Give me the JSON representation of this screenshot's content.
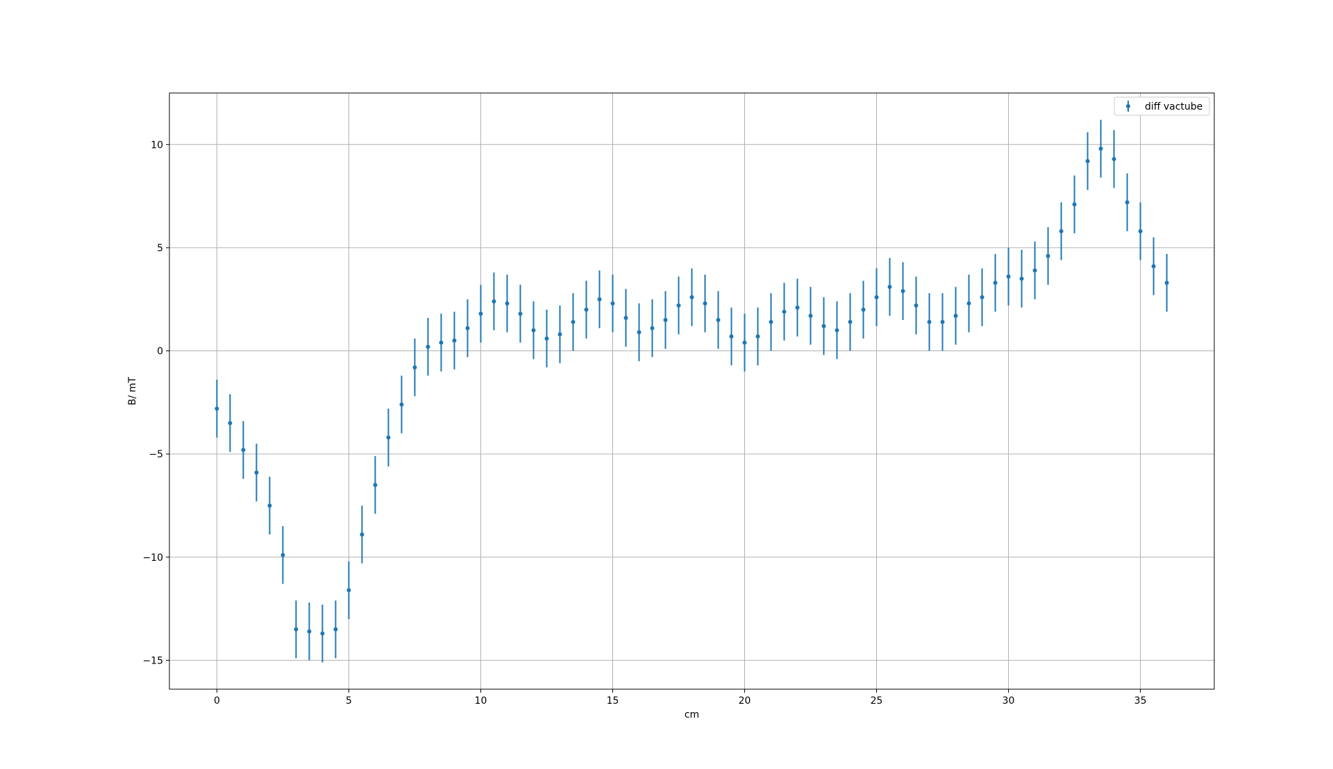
{
  "chart_data": {
    "type": "scatter",
    "title": "",
    "xlabel": "cm",
    "ylabel": "B/ mT",
    "xlim": [
      -1.8,
      37.8
    ],
    "ylim": [
      -16.4,
      12.5
    ],
    "grid": true,
    "legend_position": "top-right",
    "xticks": [
      0,
      5,
      10,
      15,
      20,
      25,
      30,
      35
    ],
    "xtick_labels": [
      "0",
      "5",
      "10",
      "15",
      "20",
      "25",
      "30",
      "35"
    ],
    "yticks": [
      -15,
      -10,
      -5,
      0,
      5,
      10
    ],
    "ytick_labels": [
      "−15",
      "−10",
      "−5",
      "0",
      "5",
      "10"
    ],
    "series": [
      {
        "name": "diff vactube",
        "color": "#1f77b4",
        "error": 1.4,
        "x": [
          0,
          0.5,
          1,
          1.5,
          2,
          2.5,
          3,
          3.5,
          4,
          4.5,
          5,
          5.5,
          6,
          6.5,
          7,
          7.5,
          8,
          8.5,
          9,
          9.5,
          10,
          10.5,
          11,
          11.5,
          12,
          12.5,
          13,
          13.5,
          14,
          14.5,
          15,
          15.5,
          16,
          16.5,
          17,
          17.5,
          18,
          18.5,
          19,
          19.5,
          20,
          20.5,
          21,
          21.5,
          22,
          22.5,
          23,
          23.5,
          24,
          24.5,
          25,
          25.5,
          26,
          26.5,
          27,
          27.5,
          28,
          28.5,
          29,
          29.5,
          30,
          30.5,
          31,
          31.5,
          32,
          32.5,
          33,
          33.5,
          34,
          34.5,
          35,
          35.5,
          36
        ],
        "y": [
          -2.8,
          -3.5,
          -4.8,
          -5.9,
          -7.5,
          -9.9,
          -13.5,
          -13.6,
          -13.7,
          -13.5,
          -11.6,
          -8.9,
          -6.5,
          -4.2,
          -2.6,
          -0.8,
          0.2,
          0.4,
          0.5,
          1.1,
          1.8,
          2.4,
          2.3,
          1.8,
          1.0,
          0.6,
          0.8,
          1.4,
          2.0,
          2.5,
          2.3,
          1.6,
          0.9,
          1.1,
          1.5,
          2.2,
          2.6,
          2.3,
          1.5,
          0.7,
          0.4,
          0.7,
          1.4,
          1.9,
          2.1,
          1.7,
          1.2,
          1.0,
          1.4,
          2.0,
          2.6,
          3.1,
          2.9,
          2.2,
          1.4,
          1.4,
          1.7,
          2.3,
          2.6,
          3.3,
          3.6,
          3.5,
          3.9,
          4.6,
          5.8,
          7.1,
          9.2,
          9.8,
          9.3,
          7.2,
          5.8,
          4.1,
          3.3
        ]
      }
    ]
  }
}
